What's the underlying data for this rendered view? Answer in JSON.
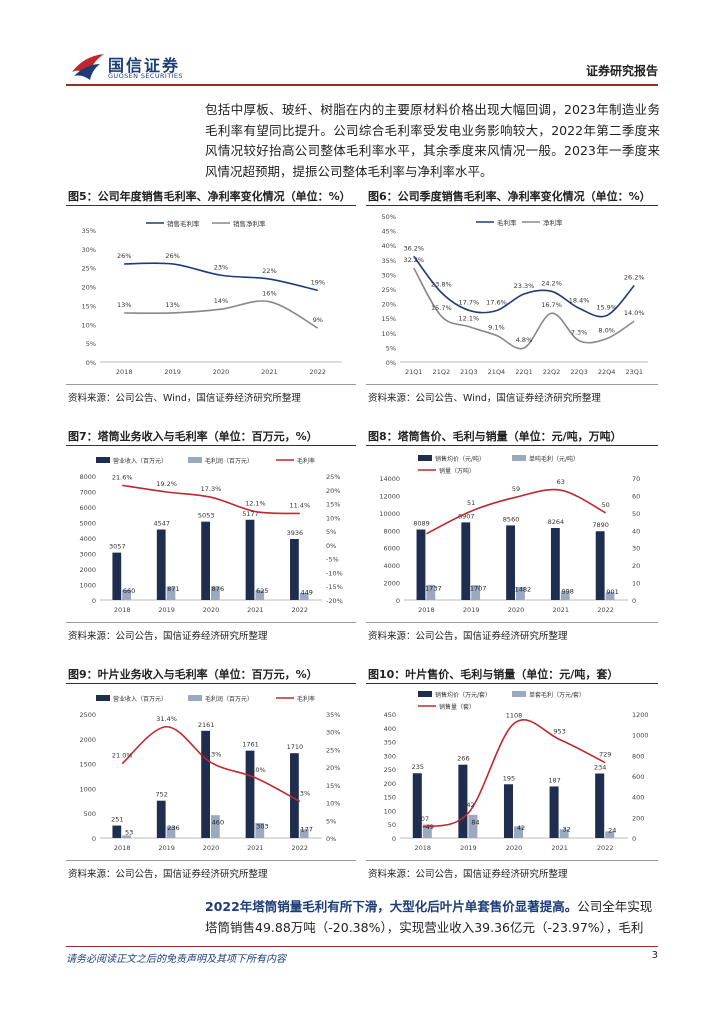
{
  "header": {
    "logo_cn": "国信证券",
    "logo_en": "GUOSEN SECURITIES",
    "right_title": "证券研究报告"
  },
  "intro_paragraph": "包括中厚板、玻纤、树脂在内的主要原材料价格出现大幅回调，2023年制造业务毛利率有望同比提升。公司综合毛利率受发电业务影响较大，2022年第二季度来风情况较好抬高公司整体毛利率水平，其余季度来风情况一般。2023年一季度来风情况超预期，提振公司整体毛利率与净利率水平。",
  "figures": {
    "fig5": {
      "title": "图5：公司年度销售毛利率、净利率变化情况（单位：%）",
      "source": "资料来源：公司公告、Wind，国信证券经济研究所整理"
    },
    "fig6": {
      "title": "图6：公司季度销售毛利率、净利率变化情况（单位：%）",
      "source": "资料来源：公司公告、Wind，国信证券经济研究所整理"
    },
    "fig7": {
      "title": "图7：塔筒业务收入与毛利率（单位：百万元，%）",
      "source": "资料来源：公司公告，国信证券经济研究所整理"
    },
    "fig8": {
      "title": "图8：塔筒售价、毛利与销量（单位：元/吨，万吨）",
      "source": "资料来源：公司公告，国信证券经济研究所整理"
    },
    "fig9": {
      "title": "图9：叶片业务收入与毛利率（单位：百万元，%）",
      "source": "资料来源：公司公告，国信证券经济研究所整理"
    },
    "fig10": {
      "title": "图10：叶片售价、毛利与销量（单位：元/吨，套）",
      "source": "资料来源：公司公告，国信证券经济研究所整理"
    }
  },
  "chart_data": [
    {
      "id": "fig5",
      "type": "line",
      "categories": [
        "2018",
        "2019",
        "2020",
        "2021",
        "2022"
      ],
      "series": [
        {
          "name": "销售毛利率",
          "values": [
            26,
            26,
            23,
            22,
            19
          ],
          "labels": [
            "26%",
            "26%",
            "23%",
            "22%",
            "19%"
          ],
          "color": "#1d3d7a"
        },
        {
          "name": "销售净利率",
          "values": [
            13,
            13,
            14,
            16,
            9
          ],
          "labels": [
            "13%",
            "13%",
            "14%",
            "16%",
            "9%"
          ],
          "color": "#888888"
        }
      ],
      "ylim": [
        0,
        35
      ],
      "yticks": [
        "0%",
        "5%",
        "10%",
        "15%",
        "20%",
        "25%",
        "30%",
        "35%"
      ]
    },
    {
      "id": "fig6",
      "type": "line",
      "categories": [
        "21Q1",
        "21Q2",
        "21Q3",
        "21Q4",
        "22Q1",
        "22Q2",
        "22Q3",
        "22Q4",
        "23Q1"
      ],
      "series": [
        {
          "name": "毛利率",
          "values": [
            36.2,
            23.8,
            17.7,
            17.6,
            23.3,
            24.2,
            18.4,
            15.9,
            26.2
          ],
          "labels": [
            "36.2%",
            "23.8%",
            "17.7%",
            "17.6%",
            "23.3%",
            "24.2%",
            "18.4%",
            "15.9%",
            "26.2%"
          ],
          "color": "#1d3d7a"
        },
        {
          "name": "净利率",
          "values": [
            32.2,
            15.7,
            12.1,
            9.1,
            4.8,
            16.7,
            7.3,
            8.0,
            14.0
          ],
          "labels": [
            "32.2%",
            "15.7%",
            "12.1%",
            "9.1%",
            "4.8%",
            "16.7%",
            "7.3%",
            "8.0%",
            "14.0%"
          ],
          "color": "#888888"
        }
      ],
      "ylim": [
        0,
        50
      ],
      "yticks": [
        "0%",
        "5%",
        "10%",
        "15%",
        "20%",
        "25%",
        "30%",
        "35%",
        "40%",
        "45%",
        "50%"
      ],
      "xticks": [
        "21Q1",
        "21Q2",
        "21Q3",
        "21Q4",
        "22Q1",
        "22Q2",
        "22Q3",
        "22Q4",
        "23Q1"
      ]
    },
    {
      "id": "fig7",
      "type": "bar",
      "categories": [
        "2018",
        "2019",
        "2020",
        "2021",
        "2022"
      ],
      "series": [
        {
          "name": "营业收入（百万元）",
          "values": [
            3057,
            4547,
            5053,
            5177,
            3936
          ],
          "labels": [
            "3057",
            "4547",
            "5053",
            "5177",
            "3936"
          ],
          "color": "#1f2d4f"
        },
        {
          "name": "毛利润（百万元）",
          "values": [
            660,
            871,
            876,
            625,
            449
          ],
          "labels": [
            "660",
            "871",
            "876",
            "625",
            "449"
          ],
          "color": "#9aa9c0"
        },
        {
          "name": "毛利率",
          "values": [
            21.6,
            19.2,
            17.3,
            12.1,
            11.4
          ],
          "labels": [
            "21.6%",
            "19.2%",
            "17.3%",
            "12.1%",
            "11.4%"
          ],
          "color": "#c0282d",
          "axis": "right"
        }
      ],
      "ylim": [
        0,
        8000
      ],
      "yticks": [
        "0",
        "1000",
        "2000",
        "3000",
        "4000",
        "5000",
        "6000",
        "7000",
        "8000"
      ],
      "y2lim": [
        -20,
        25
      ],
      "y2ticks": [
        "-20%",
        "-15%",
        "-10%",
        "-5%",
        "0%",
        "5%",
        "10%",
        "15%",
        "20%",
        "25%"
      ]
    },
    {
      "id": "fig8",
      "type": "bar",
      "categories": [
        "2018",
        "2019",
        "2020",
        "2021",
        "2022"
      ],
      "series": [
        {
          "name": "销售均价（元/吨）",
          "values": [
            8089,
            8907,
            8560,
            8264,
            7890
          ],
          "labels": [
            "8089",
            "8907",
            "8560",
            "8264",
            "7890"
          ],
          "color": "#1f2d4f"
        },
        {
          "name": "单吨毛利（元/吨）",
          "values": [
            1737,
            1707,
            1482,
            998,
            901
          ],
          "labels": [
            "1737",
            "1707",
            "1482",
            "998",
            "901"
          ],
          "color": "#9aa9c0"
        },
        {
          "name": "销量（万吨）",
          "values": [
            38,
            51,
            59,
            63,
            50
          ],
          "labels": [
            "",
            "51",
            "59",
            "63",
            "50"
          ],
          "color": "#c0282d",
          "axis": "right"
        }
      ],
      "ylim": [
        0,
        14000
      ],
      "yticks": [
        "0",
        "2000",
        "4000",
        "6000",
        "8000",
        "10000",
        "12000",
        "14000"
      ],
      "y2lim": [
        0,
        70
      ],
      "y2ticks": [
        "0",
        "10",
        "20",
        "30",
        "40",
        "50",
        "60",
        "70"
      ]
    },
    {
      "id": "fig9",
      "type": "bar",
      "categories": [
        "2018",
        "2019",
        "2020",
        "2021",
        "2022"
      ],
      "series": [
        {
          "name": "营业收入（百万元）",
          "values": [
            251,
            752,
            2161,
            1761,
            1710
          ],
          "labels": [
            "251",
            "752",
            "2161",
            "1761",
            "1710"
          ],
          "color": "#1f2d4f"
        },
        {
          "name": "毛利润（百万元）",
          "values": [
            53,
            236,
            460,
            303,
            177
          ],
          "labels": [
            "53",
            "236",
            "460",
            "303",
            "177"
          ],
          "color": "#9aa9c0"
        },
        {
          "name": "毛利率",
          "values": [
            21.0,
            31.4,
            21.3,
            17.0,
            10.3
          ],
          "labels": [
            "21.0%",
            "31.4%",
            "21.3%",
            "17.0%",
            "10.3%"
          ],
          "color": "#c0282d",
          "axis": "right"
        }
      ],
      "ylim": [
        0,
        2500
      ],
      "yticks": [
        "0",
        "500",
        "1000",
        "1500",
        "2000",
        "2500"
      ],
      "y2lim": [
        0,
        35
      ],
      "y2ticks": [
        "0%",
        "5%",
        "10%",
        "15%",
        "20%",
        "25%",
        "30%",
        "35%"
      ]
    },
    {
      "id": "fig10",
      "type": "bar",
      "categories": [
        "2018",
        "2019",
        "2020",
        "2021",
        "2022"
      ],
      "series": [
        {
          "name": "销售均价（万元/套）",
          "values": [
            235,
            266,
            195,
            187,
            234
          ],
          "labels": [
            "235",
            "266",
            "195",
            "187",
            "234"
          ],
          "color": "#1f2d4f"
        },
        {
          "name": "单套毛利（万元/套）",
          "values": [
            49,
            84,
            42,
            32,
            24
          ],
          "labels": [
            "49",
            "84",
            "42",
            "32",
            "24"
          ],
          "color": "#9aa9c0"
        },
        {
          "name": "销售量（套）",
          "values": [
            107,
            242,
            1108,
            953,
            729
          ],
          "labels": [
            "107",
            "242",
            "1108",
            "953",
            "729"
          ],
          "color": "#c0282d",
          "axis": "right"
        }
      ],
      "ylim": [
        0,
        450
      ],
      "yticks": [
        "0",
        "50",
        "100",
        "150",
        "200",
        "250",
        "300",
        "350",
        "400",
        "450"
      ],
      "y2lim": [
        0,
        1200
      ],
      "y2ticks": [
        "0",
        "200",
        "400",
        "600",
        "800",
        "1000",
        "1200"
      ]
    }
  ],
  "bottom": {
    "highlight": "2022年塔筒销量毛利有所下滑，大型化后叶片单套售价显著提高。",
    "text": "公司全年实现塔筒销售49.88万吨（-20.38%），实现营业收入39.36亿元（-23.97%），毛利"
  },
  "footer": {
    "disclaimer": "请务必阅读正文之后的免责声明及其项下所有内容",
    "page": "3"
  }
}
